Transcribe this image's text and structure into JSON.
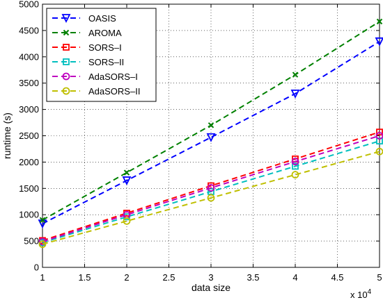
{
  "chart_data": {
    "type": "line",
    "xlabel": "data size",
    "ylabel": "runtime (s)",
    "x_multiplier": {
      "base": "x 10",
      "exponent": "4"
    },
    "xlim": [
      1,
      5
    ],
    "ylim": [
      0,
      5000
    ],
    "x_ticks": [
      1,
      1.5,
      2,
      2.5,
      3,
      3.5,
      4,
      4.5,
      5
    ],
    "x_tick_labels": [
      "1",
      "1.5",
      "2",
      "2.5",
      "3",
      "3.5",
      "4",
      "4.5",
      "5"
    ],
    "y_ticks": [
      0,
      500,
      1000,
      1500,
      2000,
      2500,
      3000,
      3500,
      4000,
      4500,
      5000
    ],
    "y_tick_labels": [
      "0",
      "500",
      "1000",
      "1500",
      "2000",
      "2500",
      "3000",
      "3500",
      "4000",
      "4500",
      "5000"
    ],
    "grid": true,
    "legend_position": "top-left",
    "x": [
      1,
      2,
      3,
      4,
      5
    ],
    "series": [
      {
        "name": "OASIS",
        "values": [
          830,
          1650,
          2470,
          3300,
          4290
        ],
        "color": "#0000ff",
        "marker": "triangle-down"
      },
      {
        "name": "AROMA",
        "values": [
          900,
          1800,
          2700,
          3660,
          4670
        ],
        "color": "#008000",
        "marker": "x"
      },
      {
        "name": "SORS–I",
        "values": [
          510,
          1030,
          1550,
          2060,
          2570
        ],
        "color": "#ff0000",
        "marker": "square"
      },
      {
        "name": "SORS–II",
        "values": [
          470,
          960,
          1440,
          1920,
          2400
        ],
        "color": "#00bfbf",
        "marker": "square"
      },
      {
        "name": "AdaSORS–I",
        "values": [
          490,
          1000,
          1510,
          2010,
          2500
        ],
        "color": "#bf00bf",
        "marker": "circle"
      },
      {
        "name": "AdaSORS–II",
        "values": [
          440,
          880,
          1320,
          1760,
          2200
        ],
        "color": "#bfbf00",
        "marker": "circle"
      }
    ]
  }
}
